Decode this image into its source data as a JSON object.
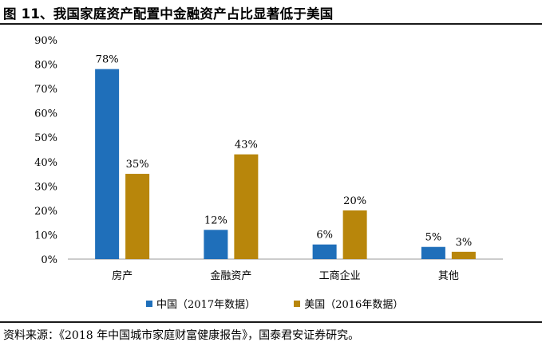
{
  "header": {
    "title": "图 11、我国家庭资产配置中金融资产占比显著低于美国"
  },
  "footer": {
    "source": "资料来源：《2018 年中国城市家庭财富健康报告》，国泰君安证券研究。"
  },
  "colors": {
    "china": "#1f6fba",
    "usa": "#b8860b"
  },
  "chart_data": {
    "type": "bar",
    "categories": [
      "房产",
      "金融资产",
      "工商企业",
      "其他"
    ],
    "series": [
      {
        "name": "中国（2017年数据）",
        "values": [
          78,
          12,
          6,
          5
        ],
        "labels": [
          "78%",
          "12%",
          "6%",
          "5%"
        ]
      },
      {
        "name": "美国（2016年数据）",
        "values": [
          35,
          43,
          20,
          3
        ],
        "labels": [
          "35%",
          "43%",
          "20%",
          "3%"
        ]
      }
    ],
    "yticks": [
      "0%",
      "10%",
      "20%",
      "30%",
      "40%",
      "50%",
      "60%",
      "70%",
      "80%",
      "90%"
    ],
    "ylim": [
      0,
      90
    ],
    "grid": false,
    "legend_position": "bottom"
  }
}
